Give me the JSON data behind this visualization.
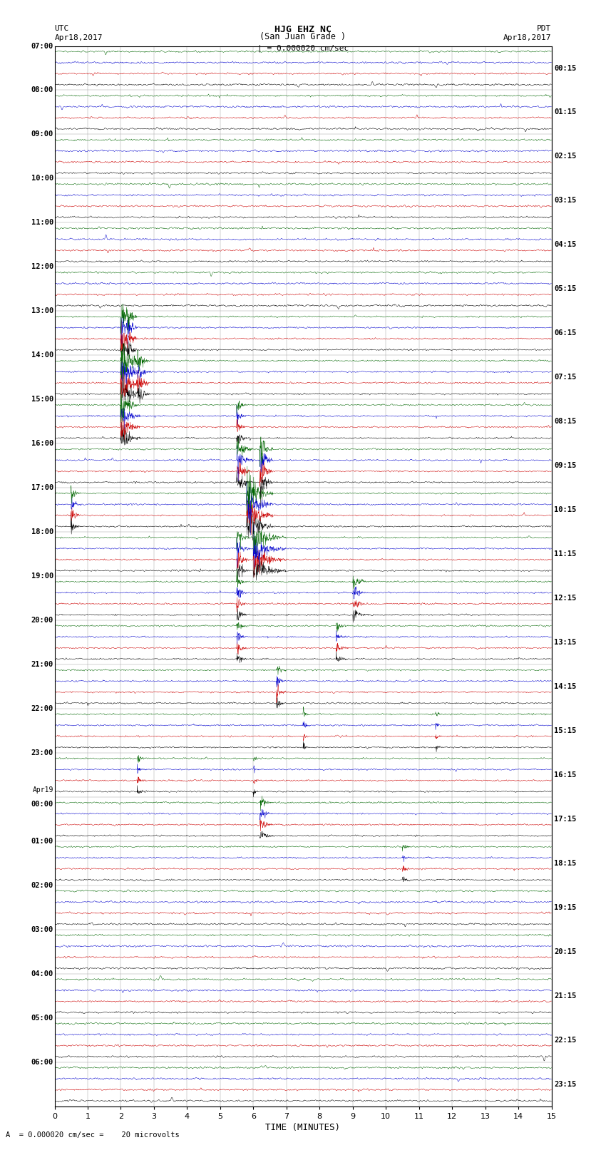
{
  "title_line1": "HJG EHZ NC",
  "title_line2": "(San Juan Grade )",
  "scale_text": "= 0.000020 cm/sec",
  "footer_text": "A  = 0.000020 cm/sec =    20 microvolts",
  "utc_label": "UTC",
  "utc_date": "Apr18,2017",
  "pdt_label": "PDT",
  "pdt_date": "Apr18,2017",
  "xlabel": "TIME (MINUTES)",
  "bg_color": "#ffffff",
  "line_colors": [
    "#000000",
    "#cc0000",
    "#0000cc",
    "#006600"
  ],
  "x_min": 0,
  "x_max": 15,
  "x_ticks": [
    0,
    1,
    2,
    3,
    4,
    5,
    6,
    7,
    8,
    9,
    10,
    11,
    12,
    13,
    14,
    15
  ],
  "num_rows": 24,
  "traces_per_row": 4,
  "figwidth": 8.5,
  "figheight": 16.13,
  "left_labels": [
    "07:00",
    "08:00",
    "09:00",
    "10:00",
    "11:00",
    "12:00",
    "13:00",
    "14:00",
    "15:00",
    "16:00",
    "17:00",
    "18:00",
    "19:00",
    "20:00",
    "21:00",
    "22:00",
    "23:00",
    "Apr19\n00:00",
    "01:00",
    "02:00",
    "03:00",
    "04:00",
    "05:00",
    "06:00"
  ],
  "right_labels": [
    "00:15",
    "01:15",
    "02:15",
    "03:15",
    "04:15",
    "05:15",
    "06:15",
    "07:15",
    "08:15",
    "09:15",
    "10:15",
    "11:15",
    "12:15",
    "13:15",
    "14:15",
    "15:15",
    "16:15",
    "17:15",
    "18:15",
    "19:15",
    "20:15",
    "21:15",
    "22:15",
    "23:15"
  ],
  "seed": 42
}
